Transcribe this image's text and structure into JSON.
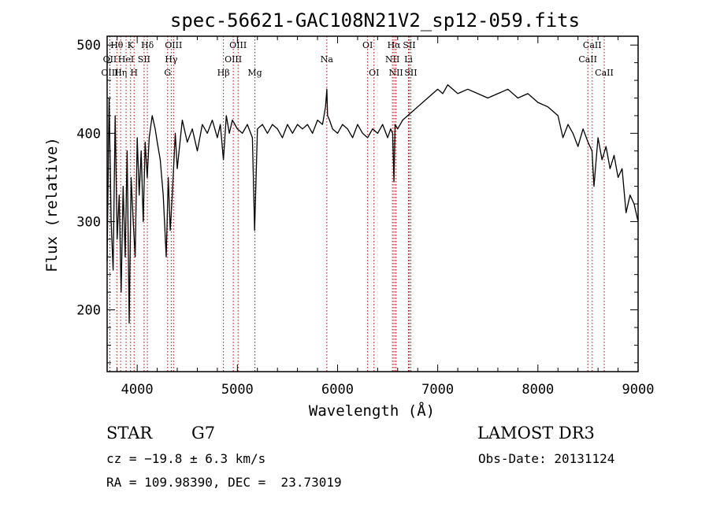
{
  "chart_data": {
    "type": "line",
    "title": "spec-56621-GAC108N21V2_sp12-059.fits",
    "xlabel": "Wavelength (Å)",
    "ylabel": "Flux (relative)",
    "xlim": [
      3700,
      9000
    ],
    "ylim": [
      130,
      510
    ],
    "xticks": [
      4000,
      5000,
      6000,
      7000,
      8000,
      9000
    ],
    "yticks": [
      200,
      300,
      400,
      500
    ],
    "grid": false,
    "series": [
      {
        "x": [
          3700,
          3720,
          3740,
          3760,
          3780,
          3800,
          3820,
          3840,
          3860,
          3880,
          3900,
          3920,
          3940,
          3960,
          3980,
          4000,
          4020,
          4040,
          4060,
          4080,
          4100,
          4120,
          4150,
          4180,
          4200,
          4230,
          4260,
          4290,
          4310,
          4330,
          4350,
          4380,
          4400,
          4450,
          4500,
          4550,
          4600,
          4650,
          4700,
          4750,
          4800,
          4830,
          4861,
          4890,
          4920,
          4950,
          5000,
          5050,
          5100,
          5150,
          5172,
          5200,
          5250,
          5300,
          5350,
          5400,
          5450,
          5500,
          5550,
          5600,
          5650,
          5700,
          5750,
          5800,
          5850,
          5880,
          5893,
          5900,
          5920,
          5950,
          6000,
          6050,
          6100,
          6150,
          6200,
          6250,
          6300,
          6350,
          6400,
          6450,
          6500,
          6530,
          6550,
          6563,
          6575,
          6600,
          6650,
          6700,
          6750,
          6800,
          6900,
          7000,
          7050,
          7100,
          7200,
          7300,
          7400,
          7500,
          7600,
          7700,
          7800,
          7900,
          8000,
          8100,
          8200,
          8250,
          8300,
          8350,
          8400,
          8450,
          8500,
          8540,
          8560,
          8600,
          8640,
          8680,
          8720,
          8760,
          8800,
          8840,
          8880,
          8920,
          8960,
          9000
        ],
        "values": [
          255,
          440,
          300,
          245,
          420,
          280,
          330,
          220,
          340,
          260,
          380,
          185,
          350,
          300,
          260,
          395,
          330,
          380,
          300,
          390,
          350,
          395,
          420,
          405,
          390,
          370,
          330,
          260,
          350,
          290,
          330,
          400,
          360,
          415,
          390,
          405,
          380,
          410,
          400,
          415,
          395,
          410,
          370,
          420,
          400,
          415,
          405,
          400,
          410,
          395,
          290,
          405,
          410,
          400,
          410,
          405,
          395,
          410,
          400,
          410,
          405,
          410,
          400,
          415,
          410,
          430,
          450,
          420,
          415,
          405,
          400,
          410,
          405,
          395,
          410,
          400,
          395,
          405,
          400,
          410,
          395,
          405,
          400,
          345,
          410,
          405,
          415,
          420,
          425,
          430,
          440,
          450,
          445,
          455,
          445,
          450,
          445,
          440,
          445,
          450,
          440,
          445,
          435,
          430,
          420,
          395,
          410,
          400,
          385,
          405,
          390,
          380,
          340,
          395,
          370,
          385,
          360,
          375,
          350,
          360,
          310,
          330,
          320,
          300
        ]
      }
    ],
    "lines": [
      {
        "label": "Hθ",
        "x": 3797,
        "row": 0
      },
      {
        "label": "K",
        "x": 3934,
        "row": 0
      },
      {
        "label": "Hδ",
        "x": 4102,
        "row": 0
      },
      {
        "label": "OIII",
        "x": 4363,
        "row": 0
      },
      {
        "label": "OIII",
        "x": 5007,
        "row": 0
      },
      {
        "label": "Na",
        "x": 5893,
        "row": 1
      },
      {
        "label": "OI",
        "x": 6300,
        "row": 0
      },
      {
        "label": "Hα",
        "x": 6563,
        "row": 0
      },
      {
        "label": "SII",
        "x": 6716,
        "row": 0
      },
      {
        "label": "CaII",
        "x": 8542,
        "row": 0
      },
      {
        "label": "OII",
        "x": 3727,
        "row": 1
      },
      {
        "label": "HeI",
        "x": 3889,
        "row": 1
      },
      {
        "label": "SII",
        "x": 4069,
        "row": 1
      },
      {
        "label": "Hγ",
        "x": 4340,
        "row": 1
      },
      {
        "label": "OIII",
        "x": 4959,
        "row": 1
      },
      {
        "label": "NII",
        "x": 6548,
        "row": 1
      },
      {
        "label": "Li",
        "x": 6708,
        "row": 1
      },
      {
        "label": "CaII",
        "x": 8498,
        "row": 1
      },
      {
        "label": "OIII",
        "x": 3727,
        "row": 2
      },
      {
        "label": "Hη",
        "x": 3835,
        "row": 2
      },
      {
        "label": "H",
        "x": 3969,
        "row": 2
      },
      {
        "label": "G",
        "x": 4304,
        "row": 2
      },
      {
        "label": "Hβ",
        "x": 4861,
        "row": 2
      },
      {
        "label": "Mg",
        "x": 5175,
        "row": 2
      },
      {
        "label": "OI",
        "x": 6364,
        "row": 2
      },
      {
        "label": "NII",
        "x": 6583,
        "row": 2
      },
      {
        "label": "SII",
        "x": 6731,
        "row": 2
      },
      {
        "label": "CaII",
        "x": 8662,
        "row": 2
      }
    ]
  },
  "info": {
    "class": "STAR",
    "subclass": "G7",
    "survey": "LAMOST DR3",
    "cz": "cz = −19.8 ± 6.3 km/s",
    "obs_date": "Obs-Date: 20131124",
    "radec": "RA = 109.98390, DEC =  23.73019"
  },
  "colors": {
    "line_markers": "#c00000",
    "spectrum": "#000000"
  }
}
